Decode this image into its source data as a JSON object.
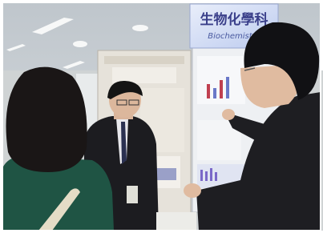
{
  "sign": {
    "title": "生物化學科",
    "subtitle": "Biochemistry"
  }
}
